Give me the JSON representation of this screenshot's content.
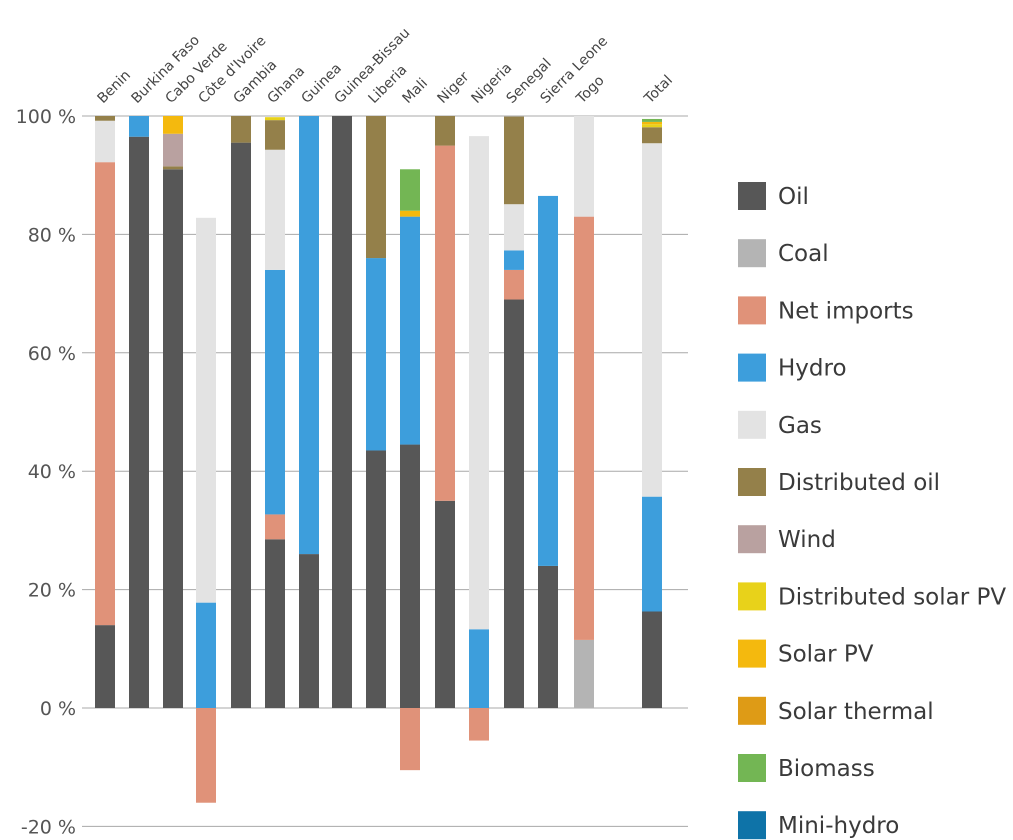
{
  "chart_data": {
    "type": "bar",
    "stacked": true,
    "title": "",
    "xlabel": "",
    "ylabel": "",
    "ylim": [
      -20,
      100
    ],
    "yticks": [
      -20,
      0,
      20,
      40,
      60,
      80,
      100
    ],
    "ytick_labels": [
      "-20 %",
      "0 %",
      "20 %",
      "40 %",
      "60 %",
      "80 %",
      "100 %"
    ],
    "grid": true,
    "legend_position": "right",
    "categories": [
      "Benin",
      "Burkina Faso",
      "Cabo Verde",
      "Côte d'Ivoire",
      "Gambia",
      "Ghana",
      "Guinea",
      "Guinea-Bissau",
      "Liberia",
      "Mali",
      "Niger",
      "Nigeria",
      "Senegal",
      "Sierra Leone",
      "Togo",
      "Total"
    ],
    "series": [
      {
        "name": "Oil",
        "color": "#575757",
        "values": [
          14,
          96.5,
          91,
          0,
          95.5,
          28.5,
          26,
          100,
          43.5,
          44.5,
          35,
          0,
          69,
          24,
          0,
          16.3
        ]
      },
      {
        "name": "Coal",
        "color": "#b4b4b4",
        "values": [
          0,
          0,
          0,
          0,
          0,
          0,
          0,
          0,
          0,
          0,
          0,
          0,
          0,
          0,
          11.5,
          0
        ]
      },
      {
        "name": "Net imports",
        "color": "#e09279",
        "values": [
          78.2,
          0,
          0,
          -16,
          0,
          4.2,
          0,
          0,
          0,
          -10.5,
          60,
          -5.5,
          5,
          0,
          71.5,
          0
        ]
      },
      {
        "name": "Hydro",
        "color": "#3d9edc",
        "values": [
          0,
          3.5,
          0,
          17.8,
          0,
          41.3,
          74,
          0,
          32.5,
          38.5,
          0,
          13.3,
          3.3,
          62.5,
          0,
          19.4
        ]
      },
      {
        "name": "Gas",
        "color": "#e3e3e3",
        "values": [
          7,
          0,
          0,
          65,
          0,
          20.3,
          0,
          0,
          0,
          0,
          0,
          83.3,
          7.8,
          0,
          17,
          59.7
        ]
      },
      {
        "name": "Distributed oil",
        "color": "#94804a",
        "values": [
          0.8,
          0,
          0.5,
          0,
          4.5,
          5,
          0,
          0,
          24,
          0,
          5,
          0,
          14.8,
          0,
          0,
          2.7
        ]
      },
      {
        "name": "Wind",
        "color": "#b9a1a0",
        "values": [
          0,
          0,
          5.5,
          0,
          0,
          0,
          0,
          0,
          0,
          0,
          0,
          0,
          0,
          0,
          0,
          0
        ]
      },
      {
        "name": "Distributed solar PV",
        "color": "#e8d21a",
        "values": [
          0,
          0,
          0,
          0,
          0,
          0.5,
          0,
          0,
          0,
          0,
          0,
          0,
          0,
          0,
          0,
          0.5
        ]
      },
      {
        "name": "Solar PV",
        "color": "#f4b90e",
        "values": [
          0,
          0,
          3,
          0,
          0,
          0,
          0,
          0,
          0,
          1,
          0,
          0,
          0,
          0,
          0,
          0.4
        ]
      },
      {
        "name": "Solar thermal",
        "color": "#de9b16",
        "values": [
          0,
          0,
          0,
          0,
          0,
          0,
          0,
          0,
          0,
          0,
          0,
          0,
          0,
          0,
          0,
          0
        ]
      },
      {
        "name": "Biomass",
        "color": "#73b654",
        "values": [
          0,
          0,
          0,
          0,
          0,
          0,
          0,
          0,
          0,
          7,
          0,
          0,
          0,
          0,
          0,
          0.5
        ]
      },
      {
        "name": "Mini-hydro",
        "color": "#0e73a8",
        "values": [
          0,
          0,
          0,
          0,
          0,
          0,
          0,
          0,
          0,
          0,
          0,
          0,
          0,
          0,
          0,
          0
        ]
      }
    ]
  }
}
